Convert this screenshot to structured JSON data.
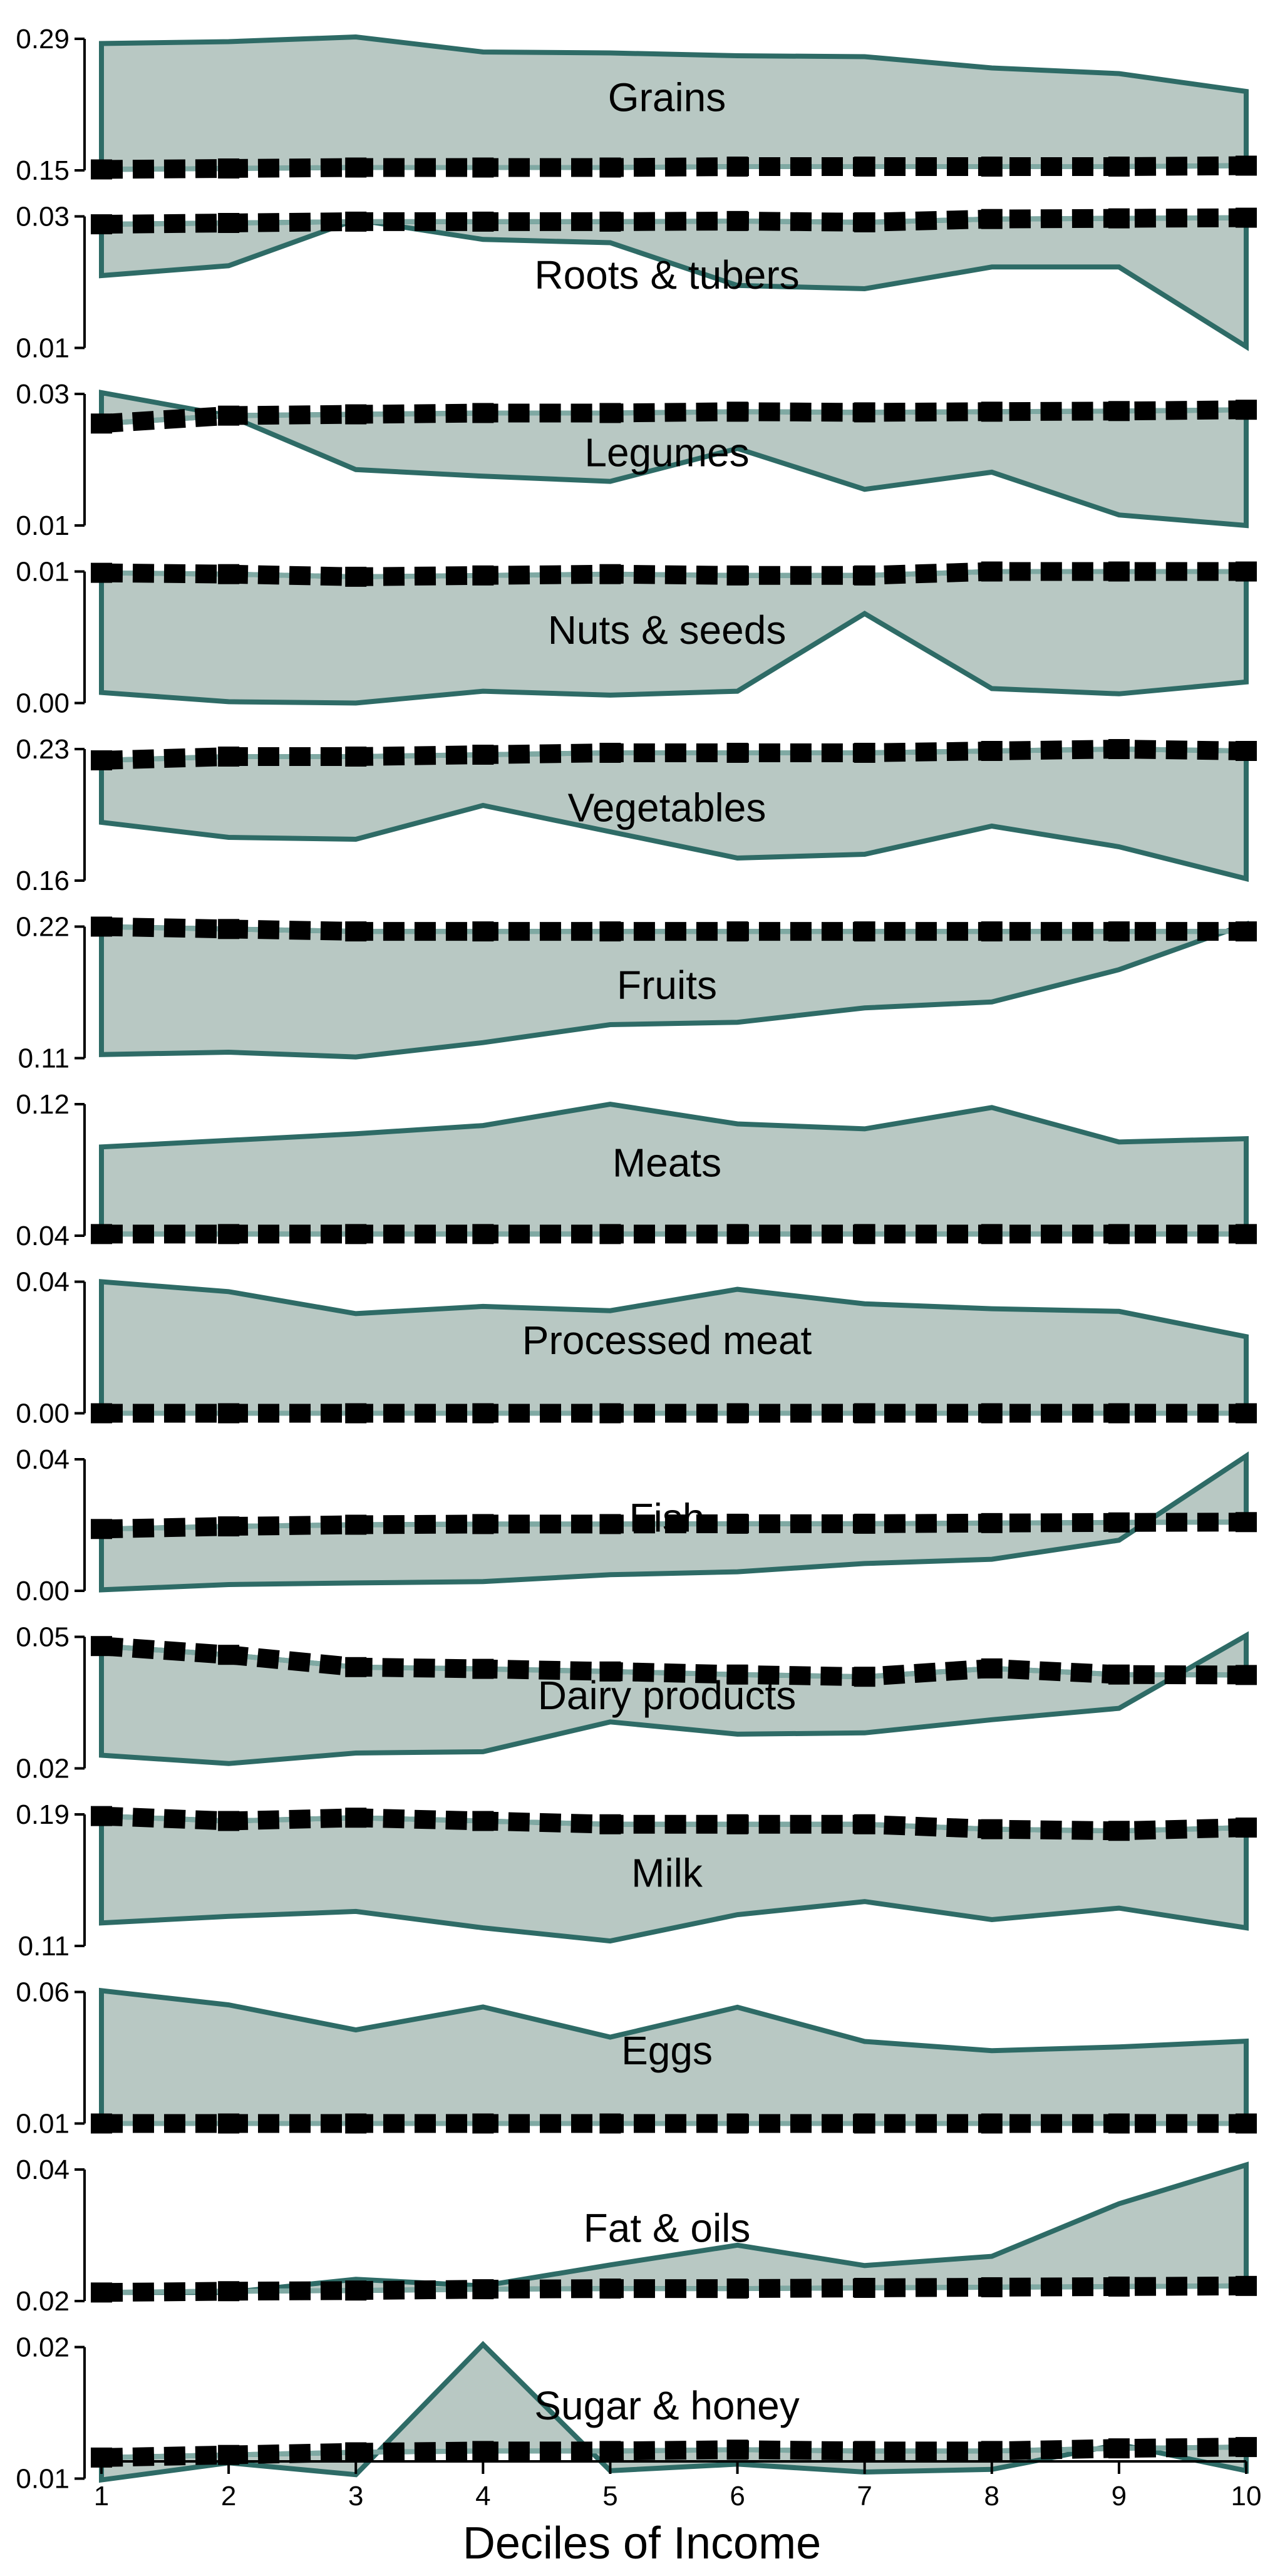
{
  "colors": {
    "band_fill": "#b8c8c3",
    "band_stroke": "#2e6b66",
    "series_line": "#7fa9a3",
    "marker": "#000000"
  },
  "chart_data": {
    "type": "area",
    "xlabel": "Deciles of Income",
    "x": [
      1,
      2,
      3,
      4,
      5,
      6,
      7,
      8,
      9,
      10
    ],
    "x_tick_labels": [
      "1",
      "2",
      "3",
      "4",
      "5",
      "6",
      "7",
      "8",
      "9",
      "10"
    ],
    "grid": false,
    "legend": "none",
    "panels": [
      {
        "label": "Grains",
        "ytick_labels": [
          "0.15",
          "0.29"
        ],
        "ylim": [
          0.15,
          0.29
        ],
        "band_edge": [
          0.285,
          0.287,
          0.292,
          0.276,
          0.275,
          0.272,
          0.271,
          0.259,
          0.253,
          0.234
        ],
        "series": [
          0.151,
          0.152,
          0.153,
          0.153,
          0.153,
          0.154,
          0.154,
          0.154,
          0.154,
          0.155
        ]
      },
      {
        "label": "Roots & tubers",
        "ytick_labels": [
          "0.01",
          "0.03"
        ],
        "ylim": [
          0.01,
          0.03
        ],
        "band_edge": [
          0.021,
          0.0225,
          0.0295,
          0.0265,
          0.026,
          0.0195,
          0.019,
          0.0223,
          0.0223,
          0.0102
        ],
        "series": [
          0.0288,
          0.029,
          0.0292,
          0.0292,
          0.0292,
          0.0293,
          0.0291,
          0.0296,
          0.0297,
          0.0298
        ]
      },
      {
        "label": "Legumes",
        "ytick_labels": [
          "0.01",
          "0.03"
        ],
        "ylim": [
          0.01,
          0.03
        ],
        "band_edge": [
          0.0302,
          0.0267,
          0.0185,
          0.0175,
          0.0167,
          0.0217,
          0.0155,
          0.0181,
          0.0116,
          0.01
        ],
        "series": [
          0.0255,
          0.0267,
          0.0269,
          0.0271,
          0.0271,
          0.0273,
          0.0272,
          0.0273,
          0.0274,
          0.0276
        ]
      },
      {
        "label": "Nuts & seeds",
        "ytick_labels": [
          "0.00",
          "0.01"
        ],
        "ylim": [
          0,
          0.01
        ],
        "band_edge": [
          0.0008,
          0.0001,
          0.0,
          0.0009,
          0.0006,
          0.0009,
          0.0068,
          0.0011,
          0.0007,
          0.0016
        ],
        "series": [
          0.0099,
          0.0098,
          0.0096,
          0.0097,
          0.0098,
          0.0097,
          0.0097,
          0.01,
          0.01,
          0.01
        ]
      },
      {
        "label": "Vegetables",
        "ytick_labels": [
          "0.16",
          "0.23"
        ],
        "ylim": [
          0.16,
          0.23
        ],
        "band_edge": [
          0.191,
          0.183,
          0.182,
          0.2,
          0.186,
          0.172,
          0.174,
          0.189,
          0.178,
          0.161
        ],
        "series": [
          0.224,
          0.226,
          0.226,
          0.227,
          0.228,
          0.228,
          0.228,
          0.229,
          0.23,
          0.229
        ]
      },
      {
        "label": "Fruits",
        "ytick_labels": [
          "0.11",
          "0.22"
        ],
        "ylim": [
          0.11,
          0.22
        ],
        "band_edge": [
          0.113,
          0.115,
          0.111,
          0.123,
          0.138,
          0.14,
          0.152,
          0.157,
          0.184,
          0.222
        ],
        "series": [
          0.22,
          0.218,
          0.216,
          0.216,
          0.216,
          0.216,
          0.216,
          0.216,
          0.216,
          0.216
        ]
      },
      {
        "label": "Meats",
        "ytick_labels": [
          "0.04",
          "0.12"
        ],
        "ylim": [
          0.04,
          0.12
        ],
        "band_edge": [
          0.094,
          0.098,
          0.102,
          0.107,
          0.12,
          0.108,
          0.105,
          0.118,
          0.097,
          0.099
        ],
        "series": [
          0.041,
          0.041,
          0.041,
          0.041,
          0.041,
          0.041,
          0.041,
          0.041,
          0.041,
          0.041
        ]
      },
      {
        "label": "Processed meat",
        "ytick_labels": [
          "0.00",
          "0.04"
        ],
        "ylim": [
          0,
          0.04
        ],
        "band_edge": [
          0.04,
          0.037,
          0.0303,
          0.0325,
          0.0312,
          0.0377,
          0.0333,
          0.0318,
          0.031,
          0.0233
        ],
        "series": [
          0.0,
          0.0,
          0.0,
          0.0,
          0.0,
          0.0,
          0.0,
          0.0,
          0.0,
          0.0
        ]
      },
      {
        "label": "Fish",
        "ytick_labels": [
          "0.00",
          "0.04"
        ],
        "ylim": [
          0,
          0.04
        ],
        "band_edge": [
          0.0003,
          0.0019,
          0.0024,
          0.0028,
          0.0049,
          0.0058,
          0.0083,
          0.0096,
          0.0154,
          0.041
        ],
        "series": [
          0.0188,
          0.0196,
          0.0201,
          0.0203,
          0.0203,
          0.0204,
          0.0204,
          0.0206,
          0.0208,
          0.0209
        ]
      },
      {
        "label": "Dairy products",
        "ytick_labels": [
          "0.02",
          "0.05"
        ],
        "ylim": [
          0.02,
          0.05
        ],
        "band_edge": [
          0.023,
          0.0211,
          0.0235,
          0.0238,
          0.0306,
          0.0278,
          0.0281,
          0.0311,
          0.0337,
          0.0503
        ],
        "series": [
          0.0479,
          0.0459,
          0.0431,
          0.0427,
          0.0421,
          0.0414,
          0.0409,
          0.0428,
          0.0414,
          0.0413
        ]
      },
      {
        "label": "Milk",
        "ytick_labels": [
          "0.11",
          "0.19"
        ],
        "ylim": [
          0.11,
          0.19
        ],
        "band_edge": [
          0.124,
          0.128,
          0.131,
          0.121,
          0.113,
          0.129,
          0.137,
          0.126,
          0.133,
          0.121
        ],
        "series": [
          0.189,
          0.186,
          0.188,
          0.186,
          0.184,
          0.184,
          0.184,
          0.181,
          0.18,
          0.182
        ]
      },
      {
        "label": "Eggs",
        "ytick_labels": [
          "0.01",
          "0.06"
        ],
        "ylim": [
          0.01,
          0.06
        ],
        "band_edge": [
          0.0605,
          0.0551,
          0.0456,
          0.0543,
          0.0428,
          0.0542,
          0.0412,
          0.0377,
          0.0391,
          0.0413
        ],
        "series": [
          0.01,
          0.01,
          0.01,
          0.01,
          0.01,
          0.01,
          0.01,
          0.01,
          0.01,
          0.01
        ]
      },
      {
        "label": "Fat & oils",
        "ytick_labels": [
          "0.02",
          "0.04"
        ],
        "ylim": [
          0.02,
          0.04
        ],
        "band_edge": [
          0.0213,
          0.0213,
          0.0233,
          0.0223,
          0.0255,
          0.0285,
          0.0254,
          0.0268,
          0.0348,
          0.0407
        ],
        "series": [
          0.0213,
          0.0215,
          0.0216,
          0.0218,
          0.0219,
          0.0219,
          0.022,
          0.0221,
          0.0222,
          0.0223
        ]
      },
      {
        "label": "Sugar & honey",
        "ytick_labels": [
          "0.01",
          "0.02"
        ],
        "ylim": [
          0.01,
          0.02
        ],
        "band_edge": [
          0.0099,
          0.0112,
          0.0103,
          0.0202,
          0.0106,
          0.0111,
          0.0105,
          0.0107,
          0.0126,
          0.0106
        ],
        "series": [
          0.0116,
          0.0118,
          0.012,
          0.0121,
          0.0121,
          0.0122,
          0.0121,
          0.0121,
          0.0123,
          0.0124
        ]
      }
    ]
  }
}
